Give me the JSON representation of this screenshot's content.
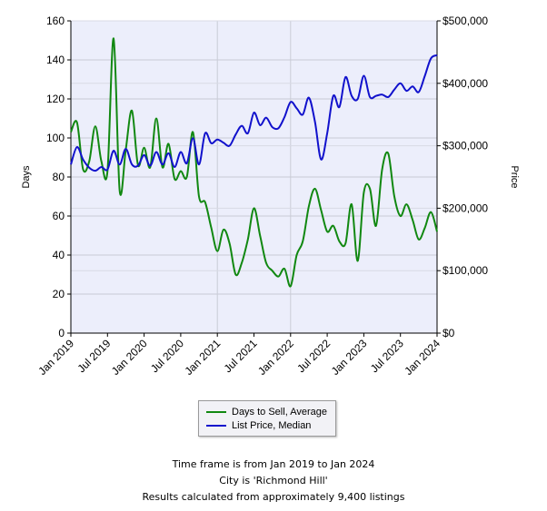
{
  "chart_data": {
    "type": "line",
    "x_labels": [
      "Jan 2019",
      "Jul 2019",
      "Jan 2020",
      "Jul 2020",
      "Jan 2021",
      "Jul 2021",
      "Jan 2022",
      "Jul 2022",
      "Jan 2023",
      "Jul 2023",
      "Jan 2024"
    ],
    "xlim": [
      "2019-01",
      "2024-01"
    ],
    "left_axis": {
      "label": "Days",
      "ylim": [
        0,
        160
      ],
      "ticks": [
        "0",
        "20",
        "40",
        "60",
        "80",
        "100",
        "120",
        "140",
        "160"
      ]
    },
    "right_axis": {
      "label": "Price",
      "ylim": [
        0,
        500000
      ],
      "ticks": [
        "$0",
        "$100,000",
        "$200,000",
        "$300,000",
        "$400,000",
        "$500,000"
      ]
    },
    "grid": true,
    "series": [
      {
        "name": "Days to Sell, Average",
        "axis": "left",
        "color": "#118811",
        "x": [
          "2019-01",
          "2019-02",
          "2019-03",
          "2019-04",
          "2019-05",
          "2019-06",
          "2019-07",
          "2019-08",
          "2019-09",
          "2019-10",
          "2019-11",
          "2019-12",
          "2020-01",
          "2020-02",
          "2020-03",
          "2020-04",
          "2020-05",
          "2020-06",
          "2020-07",
          "2020-08",
          "2020-09",
          "2020-10",
          "2020-11",
          "2020-12",
          "2021-01",
          "2021-02",
          "2021-03",
          "2021-04",
          "2021-05",
          "2021-06",
          "2021-07",
          "2021-08",
          "2021-09",
          "2021-10",
          "2021-11",
          "2021-12",
          "2022-01",
          "2022-02",
          "2022-03",
          "2022-04",
          "2022-05",
          "2022-06",
          "2022-07",
          "2022-08",
          "2022-09",
          "2022-10",
          "2022-11",
          "2022-12",
          "2023-01",
          "2023-02",
          "2023-03",
          "2023-04",
          "2023-05",
          "2023-06",
          "2023-07",
          "2023-08",
          "2023-09",
          "2023-10",
          "2023-11",
          "2023-12",
          "2024-01"
        ],
        "values": [
          103,
          108,
          84,
          88,
          106,
          88,
          83,
          151,
          73,
          94,
          114,
          86,
          95,
          85,
          110,
          85,
          97,
          79,
          83,
          80,
          103,
          70,
          67,
          54,
          42,
          53,
          46,
          30,
          36,
          48,
          64,
          50,
          36,
          32,
          29,
          33,
          24,
          40,
          47,
          65,
          74,
          63,
          52,
          55,
          47,
          46,
          66,
          37,
          72,
          74,
          55,
          84,
          92,
          70,
          60,
          66,
          58,
          48,
          54,
          62,
          52
        ],
        "note": "x values are month strings in the chart's date domain; values are days"
      },
      {
        "name": "List Price, Median",
        "axis": "right",
        "color": "#1111cc",
        "x": [
          "2019-01",
          "2019-02",
          "2019-03",
          "2019-04",
          "2019-05",
          "2019-06",
          "2019-07",
          "2019-08",
          "2019-09",
          "2019-10",
          "2019-11",
          "2019-12",
          "2020-01",
          "2020-02",
          "2020-03",
          "2020-04",
          "2020-05",
          "2020-06",
          "2020-07",
          "2020-08",
          "2020-09",
          "2020-10",
          "2020-11",
          "2020-12",
          "2021-01",
          "2021-02",
          "2021-03",
          "2021-04",
          "2021-05",
          "2021-06",
          "2021-07",
          "2021-08",
          "2021-09",
          "2021-10",
          "2021-11",
          "2021-12",
          "2022-01",
          "2022-02",
          "2022-03",
          "2022-04",
          "2022-05",
          "2022-06",
          "2022-07",
          "2022-08",
          "2022-09",
          "2022-10",
          "2022-11",
          "2022-12",
          "2023-01",
          "2023-02",
          "2023-03",
          "2023-04",
          "2023-05",
          "2023-06",
          "2023-07",
          "2023-08",
          "2023-09",
          "2023-10",
          "2023-11",
          "2023-12",
          "2024-01"
        ],
        "values": [
          270000,
          298000,
          278000,
          265000,
          260000,
          266000,
          262000,
          292000,
          270000,
          295000,
          270000,
          268000,
          285000,
          268000,
          290000,
          270000,
          288000,
          266000,
          290000,
          272000,
          312000,
          270000,
          320000,
          304000,
          310000,
          305000,
          300000,
          318000,
          332000,
          320000,
          353000,
          333000,
          345000,
          330000,
          328000,
          346000,
          370000,
          360000,
          350000,
          377000,
          338000,
          278000,
          320000,
          380000,
          362000,
          410000,
          380000,
          375000,
          412000,
          378000,
          380000,
          382000,
          378000,
          390000,
          400000,
          388000,
          395000,
          386000,
          412000,
          440000,
          445000
        ]
      }
    ]
  },
  "legend": {
    "items": [
      {
        "label": "Days to Sell, Average",
        "color": "#118811"
      },
      {
        "label": "List Price, Median",
        "color": "#1111cc"
      }
    ]
  },
  "captions": {
    "line1": "Time frame is from Jan 2019 to Jan 2024",
    "line2": "City is 'Richmond Hill'",
    "line3": "Results calculated from approximately 9,400 listings"
  }
}
